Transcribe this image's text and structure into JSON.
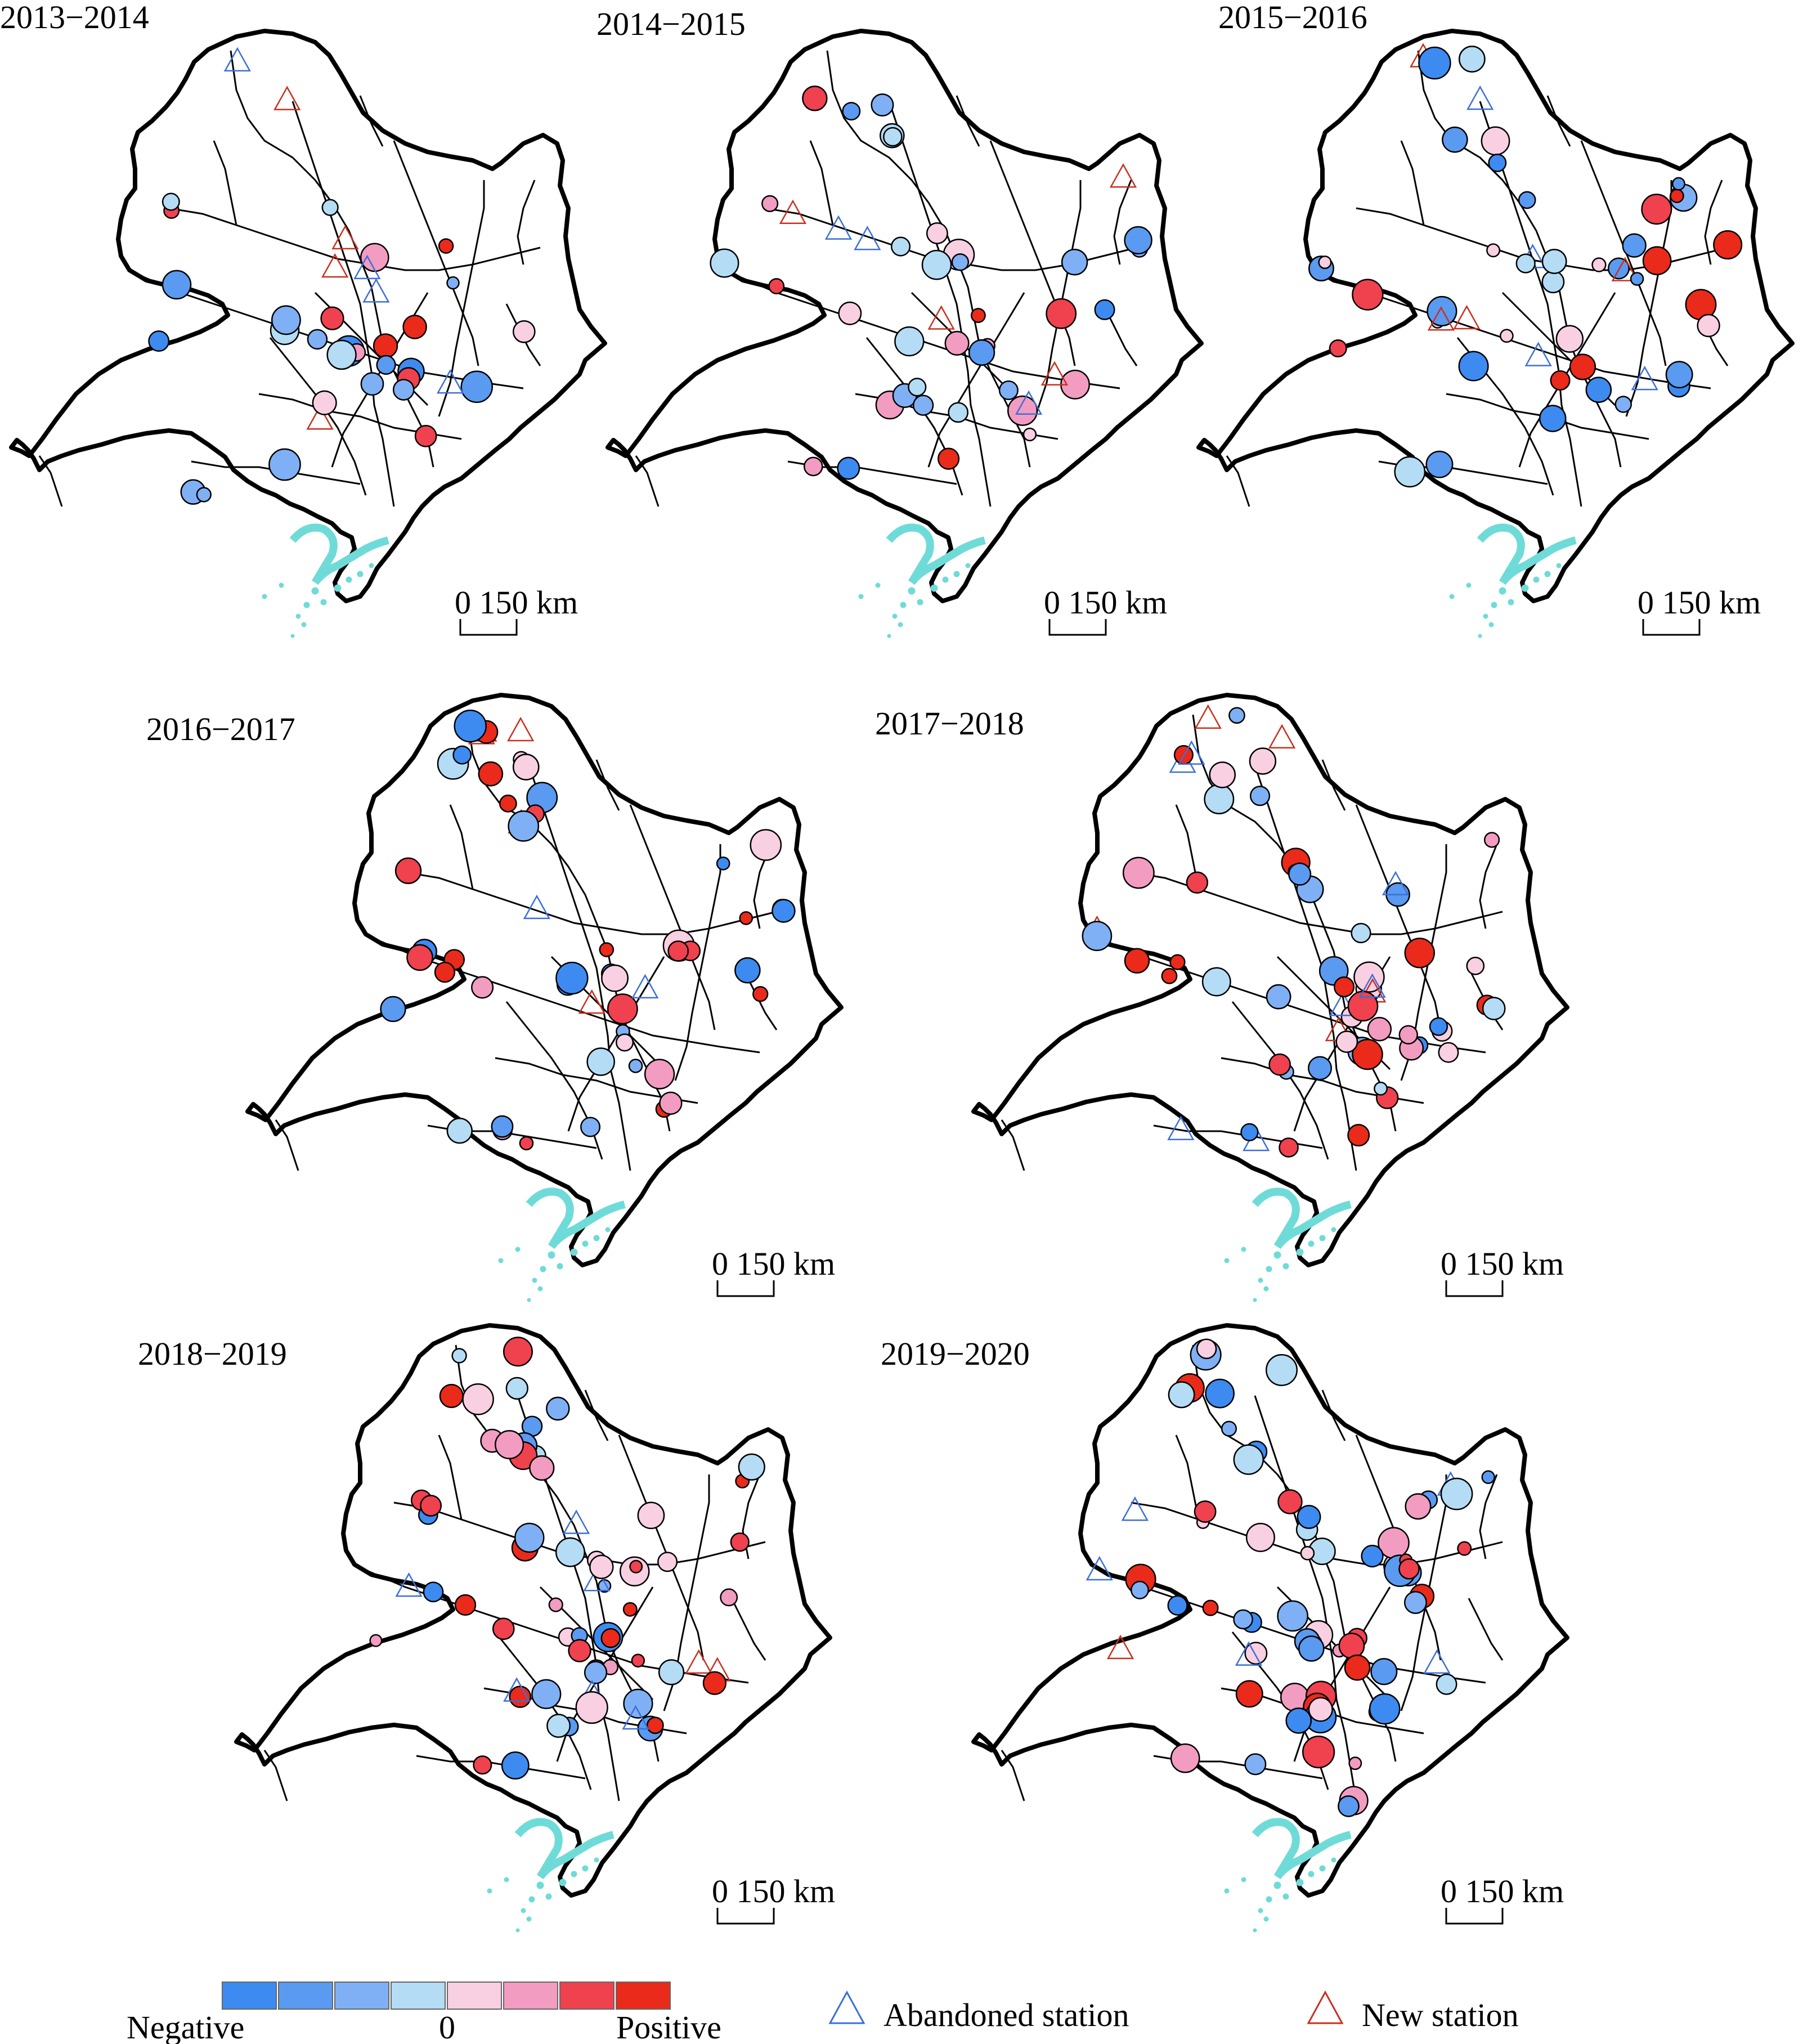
{
  "panels": [
    {
      "title": "2013−2014",
      "scale_label": "0  150 km"
    },
    {
      "title": "2014−2015",
      "scale_label": "0  150 km"
    },
    {
      "title": "2015−2016",
      "scale_label": "0  150 km"
    },
    {
      "title": "2016−2017",
      "scale_label": "0  150 km"
    },
    {
      "title": "2017−2018",
      "scale_label": "0  150 km"
    },
    {
      "title": "2018−2019",
      "scale_label": "0  150 km"
    },
    {
      "title": "2019−2020",
      "scale_label": "0  150 km"
    }
  ],
  "legend": {
    "color_ramp": [
      "#3d8bf0",
      "#5a9af0",
      "#7fb0f5",
      "#b4dcf5",
      "#f9cfe2",
      "#f29cc1",
      "#f0414f",
      "#ea2a1a"
    ],
    "negative_label": "Negative",
    "zero_label": "0",
    "positive_label": "Positive",
    "abandoned_label": "Abandoned station",
    "new_label": "New station",
    "abandoned_color": "#3b6fd8",
    "new_color": "#c8301e"
  },
  "colors": {
    "outline": "#000000",
    "rail": "#000000",
    "coast": "#6fdbd8"
  }
}
